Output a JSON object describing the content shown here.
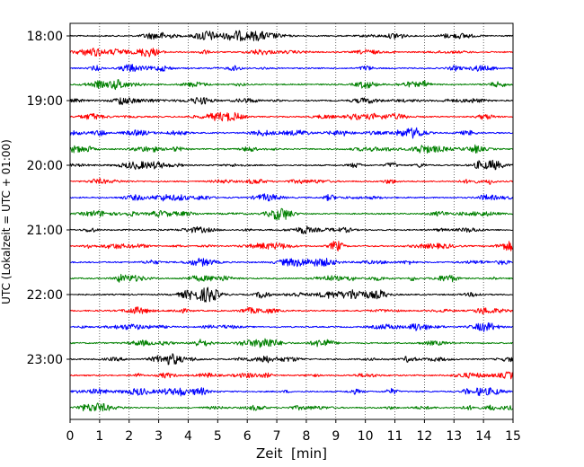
{
  "chart_data": {
    "type": "line",
    "title": "",
    "xlabel": "Zeit  [min]",
    "ylabel": "UTC (Lokalzeit = UTC + 01:00)",
    "xlim": [
      0,
      15
    ],
    "x_ticks": [
      0,
      1,
      2,
      3,
      4,
      5,
      6,
      7,
      8,
      9,
      10,
      11,
      12,
      13,
      14,
      15
    ],
    "x_tick_labels": [
      "0",
      "1",
      "2",
      "3",
      "4",
      "5",
      "6",
      "7",
      "8",
      "9",
      "10",
      "11",
      "12",
      "13",
      "14",
      "15"
    ],
    "y_tick_labels": [
      "18:00",
      "19:00",
      "20:00",
      "21:00",
      "22:00",
      "23:00"
    ],
    "y_tick_traces": [
      0,
      4,
      8,
      12,
      16,
      20
    ],
    "trace_interval_min": 15,
    "grid": "vertical dotted",
    "legend": "none",
    "color_cycle": [
      "#000000",
      "#ff0000",
      "#0000ff",
      "#008000"
    ],
    "traces": [
      {
        "start": "18:00",
        "color": "#000000"
      },
      {
        "start": "18:15",
        "color": "#ff0000"
      },
      {
        "start": "18:30",
        "color": "#0000ff"
      },
      {
        "start": "18:45",
        "color": "#008000"
      },
      {
        "start": "19:00",
        "color": "#000000"
      },
      {
        "start": "19:15",
        "color": "#ff0000"
      },
      {
        "start": "19:30",
        "color": "#0000ff"
      },
      {
        "start": "19:45",
        "color": "#008000"
      },
      {
        "start": "20:00",
        "color": "#000000"
      },
      {
        "start": "20:15",
        "color": "#ff0000"
      },
      {
        "start": "20:30",
        "color": "#0000ff"
      },
      {
        "start": "20:45",
        "color": "#008000"
      },
      {
        "start": "21:00",
        "color": "#000000"
      },
      {
        "start": "21:15",
        "color": "#ff0000"
      },
      {
        "start": "21:30",
        "color": "#0000ff"
      },
      {
        "start": "21:45",
        "color": "#008000"
      },
      {
        "start": "22:00",
        "color": "#000000"
      },
      {
        "start": "22:15",
        "color": "#ff0000"
      },
      {
        "start": "22:30",
        "color": "#0000ff"
      },
      {
        "start": "22:45",
        "color": "#008000"
      },
      {
        "start": "23:00",
        "color": "#000000"
      },
      {
        "start": "23:15",
        "color": "#ff0000"
      },
      {
        "start": "23:30",
        "color": "#0000ff"
      },
      {
        "start": "23:45",
        "color": "#008000"
      }
    ]
  }
}
